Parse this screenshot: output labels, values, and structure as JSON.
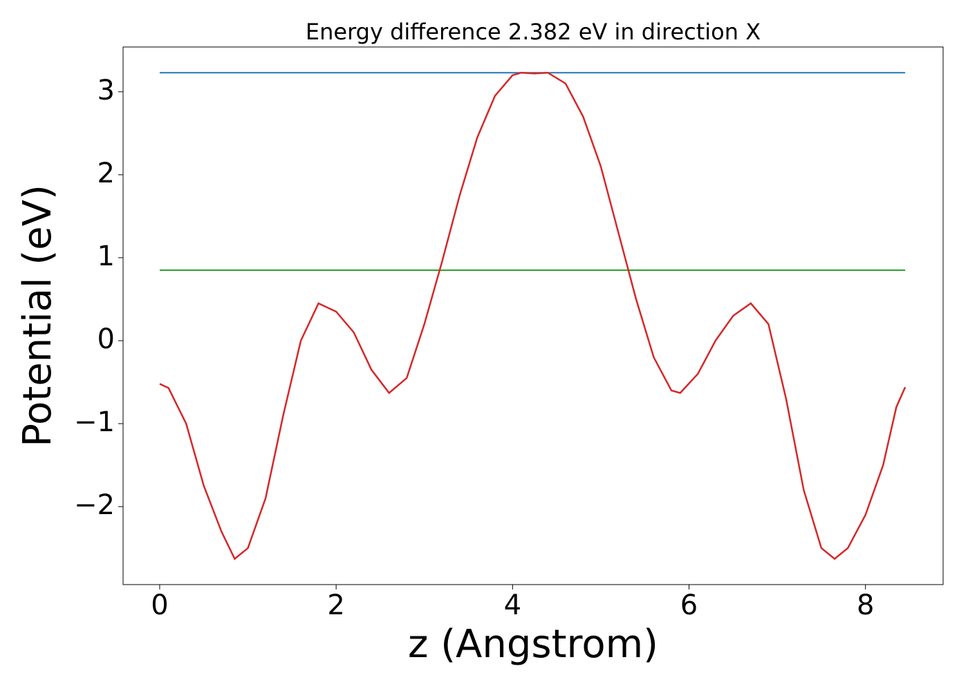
{
  "chart_data": {
    "type": "line",
    "title": "Energy difference 2.382 eV in direction X",
    "x_label": "z (Angstrom)",
    "y_label": "Potential (eV)",
    "series": [
      {
        "color": "#d62728",
        "x": [
          0,
          0.1,
          0.3,
          0.5,
          0.7,
          0.85,
          1.0,
          1.2,
          1.4,
          1.6,
          1.8,
          2.0,
          2.2,
          2.4,
          2.6,
          2.8,
          3.0,
          3.2,
          3.4,
          3.6,
          3.8,
          4.0,
          4.1,
          4.25,
          4.4,
          4.6,
          4.8,
          5.0,
          5.2,
          5.4,
          5.6,
          5.8,
          5.9,
          6.1,
          6.3,
          6.5,
          6.7,
          6.9,
          7.1,
          7.3,
          7.5,
          7.65,
          7.8,
          8.0,
          8.2,
          8.35,
          8.45
        ],
        "values": [
          -0.52,
          -0.57,
          -1.0,
          -1.75,
          -2.3,
          -2.63,
          -2.5,
          -1.9,
          -0.9,
          0.0,
          0.45,
          0.35,
          0.1,
          -0.35,
          -0.63,
          -0.45,
          0.2,
          0.95,
          1.75,
          2.45,
          2.95,
          3.2,
          3.23,
          3.22,
          3.23,
          3.1,
          2.7,
          2.1,
          1.3,
          0.5,
          -0.2,
          -0.6,
          -0.63,
          -0.4,
          0.0,
          0.3,
          0.45,
          0.2,
          -0.7,
          -1.8,
          -2.5,
          -2.63,
          -2.5,
          -2.1,
          -1.5,
          -0.8,
          -0.56
        ]
      },
      {
        "color": "#1f77b4",
        "x": [
          0,
          8.45
        ],
        "values": [
          3.23,
          3.23
        ]
      },
      {
        "color": "#2ca02c",
        "x": [
          0,
          8.45
        ],
        "values": [
          0.85,
          0.85
        ]
      }
    ],
    "xlim": [
      -0.415,
      8.88
    ],
    "ylim": [
      -2.94,
      3.54
    ],
    "xticks": [
      0,
      2,
      4,
      6,
      8
    ],
    "yticks": [
      {
        "value": -2,
        "label": "−2"
      },
      {
        "value": -1,
        "label": "−1"
      },
      0,
      1,
      2,
      3
    ]
  }
}
